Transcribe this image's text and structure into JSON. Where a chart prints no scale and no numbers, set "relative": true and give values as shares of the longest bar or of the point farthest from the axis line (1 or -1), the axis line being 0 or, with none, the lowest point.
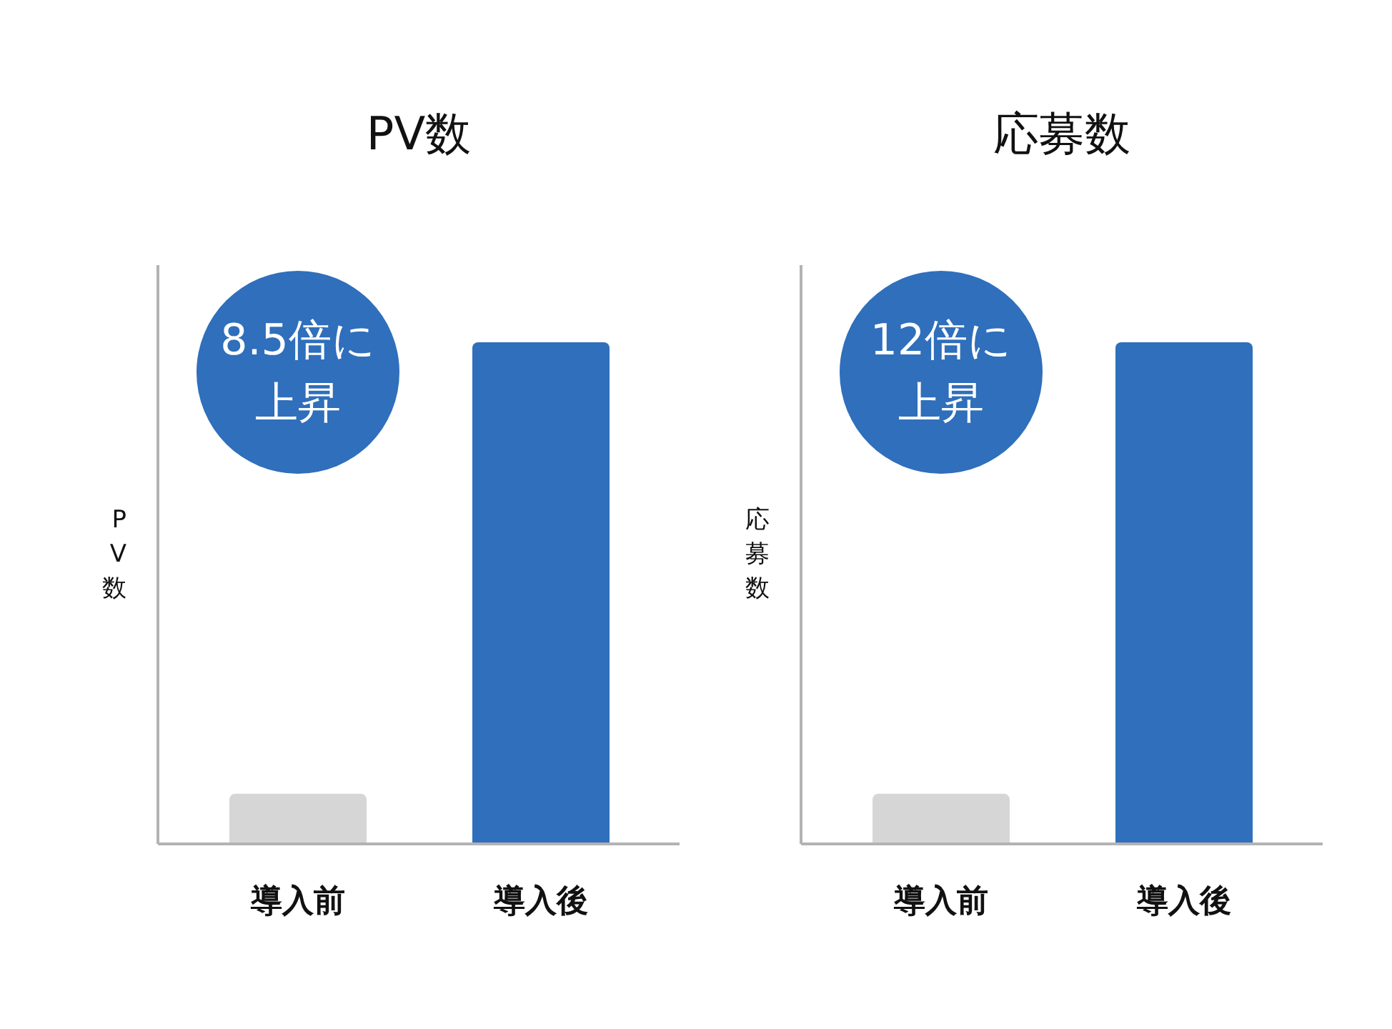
{
  "chart_data": [
    {
      "type": "bar",
      "title": "PV数",
      "ylabel": "PV数",
      "categories": [
        "導入前",
        "導入後"
      ],
      "values": [
        0.1,
        1
      ],
      "colors": [
        "#d6d6d6",
        "#2f6fbb"
      ],
      "relative": true,
      "tick_labels": "x",
      "annotations": [
        "8.5倍に上昇"
      ]
    },
    {
      "type": "bar",
      "title": "応募数",
      "ylabel": "応募数",
      "categories": [
        "導入前",
        "導入後"
      ],
      "values": [
        0.1,
        1
      ],
      "colors": [
        "#d6d6d6",
        "#2f6fbb"
      ],
      "relative": true,
      "tick_labels": "x",
      "annotations": [
        "12倍に上昇"
      ]
    }
  ]
}
